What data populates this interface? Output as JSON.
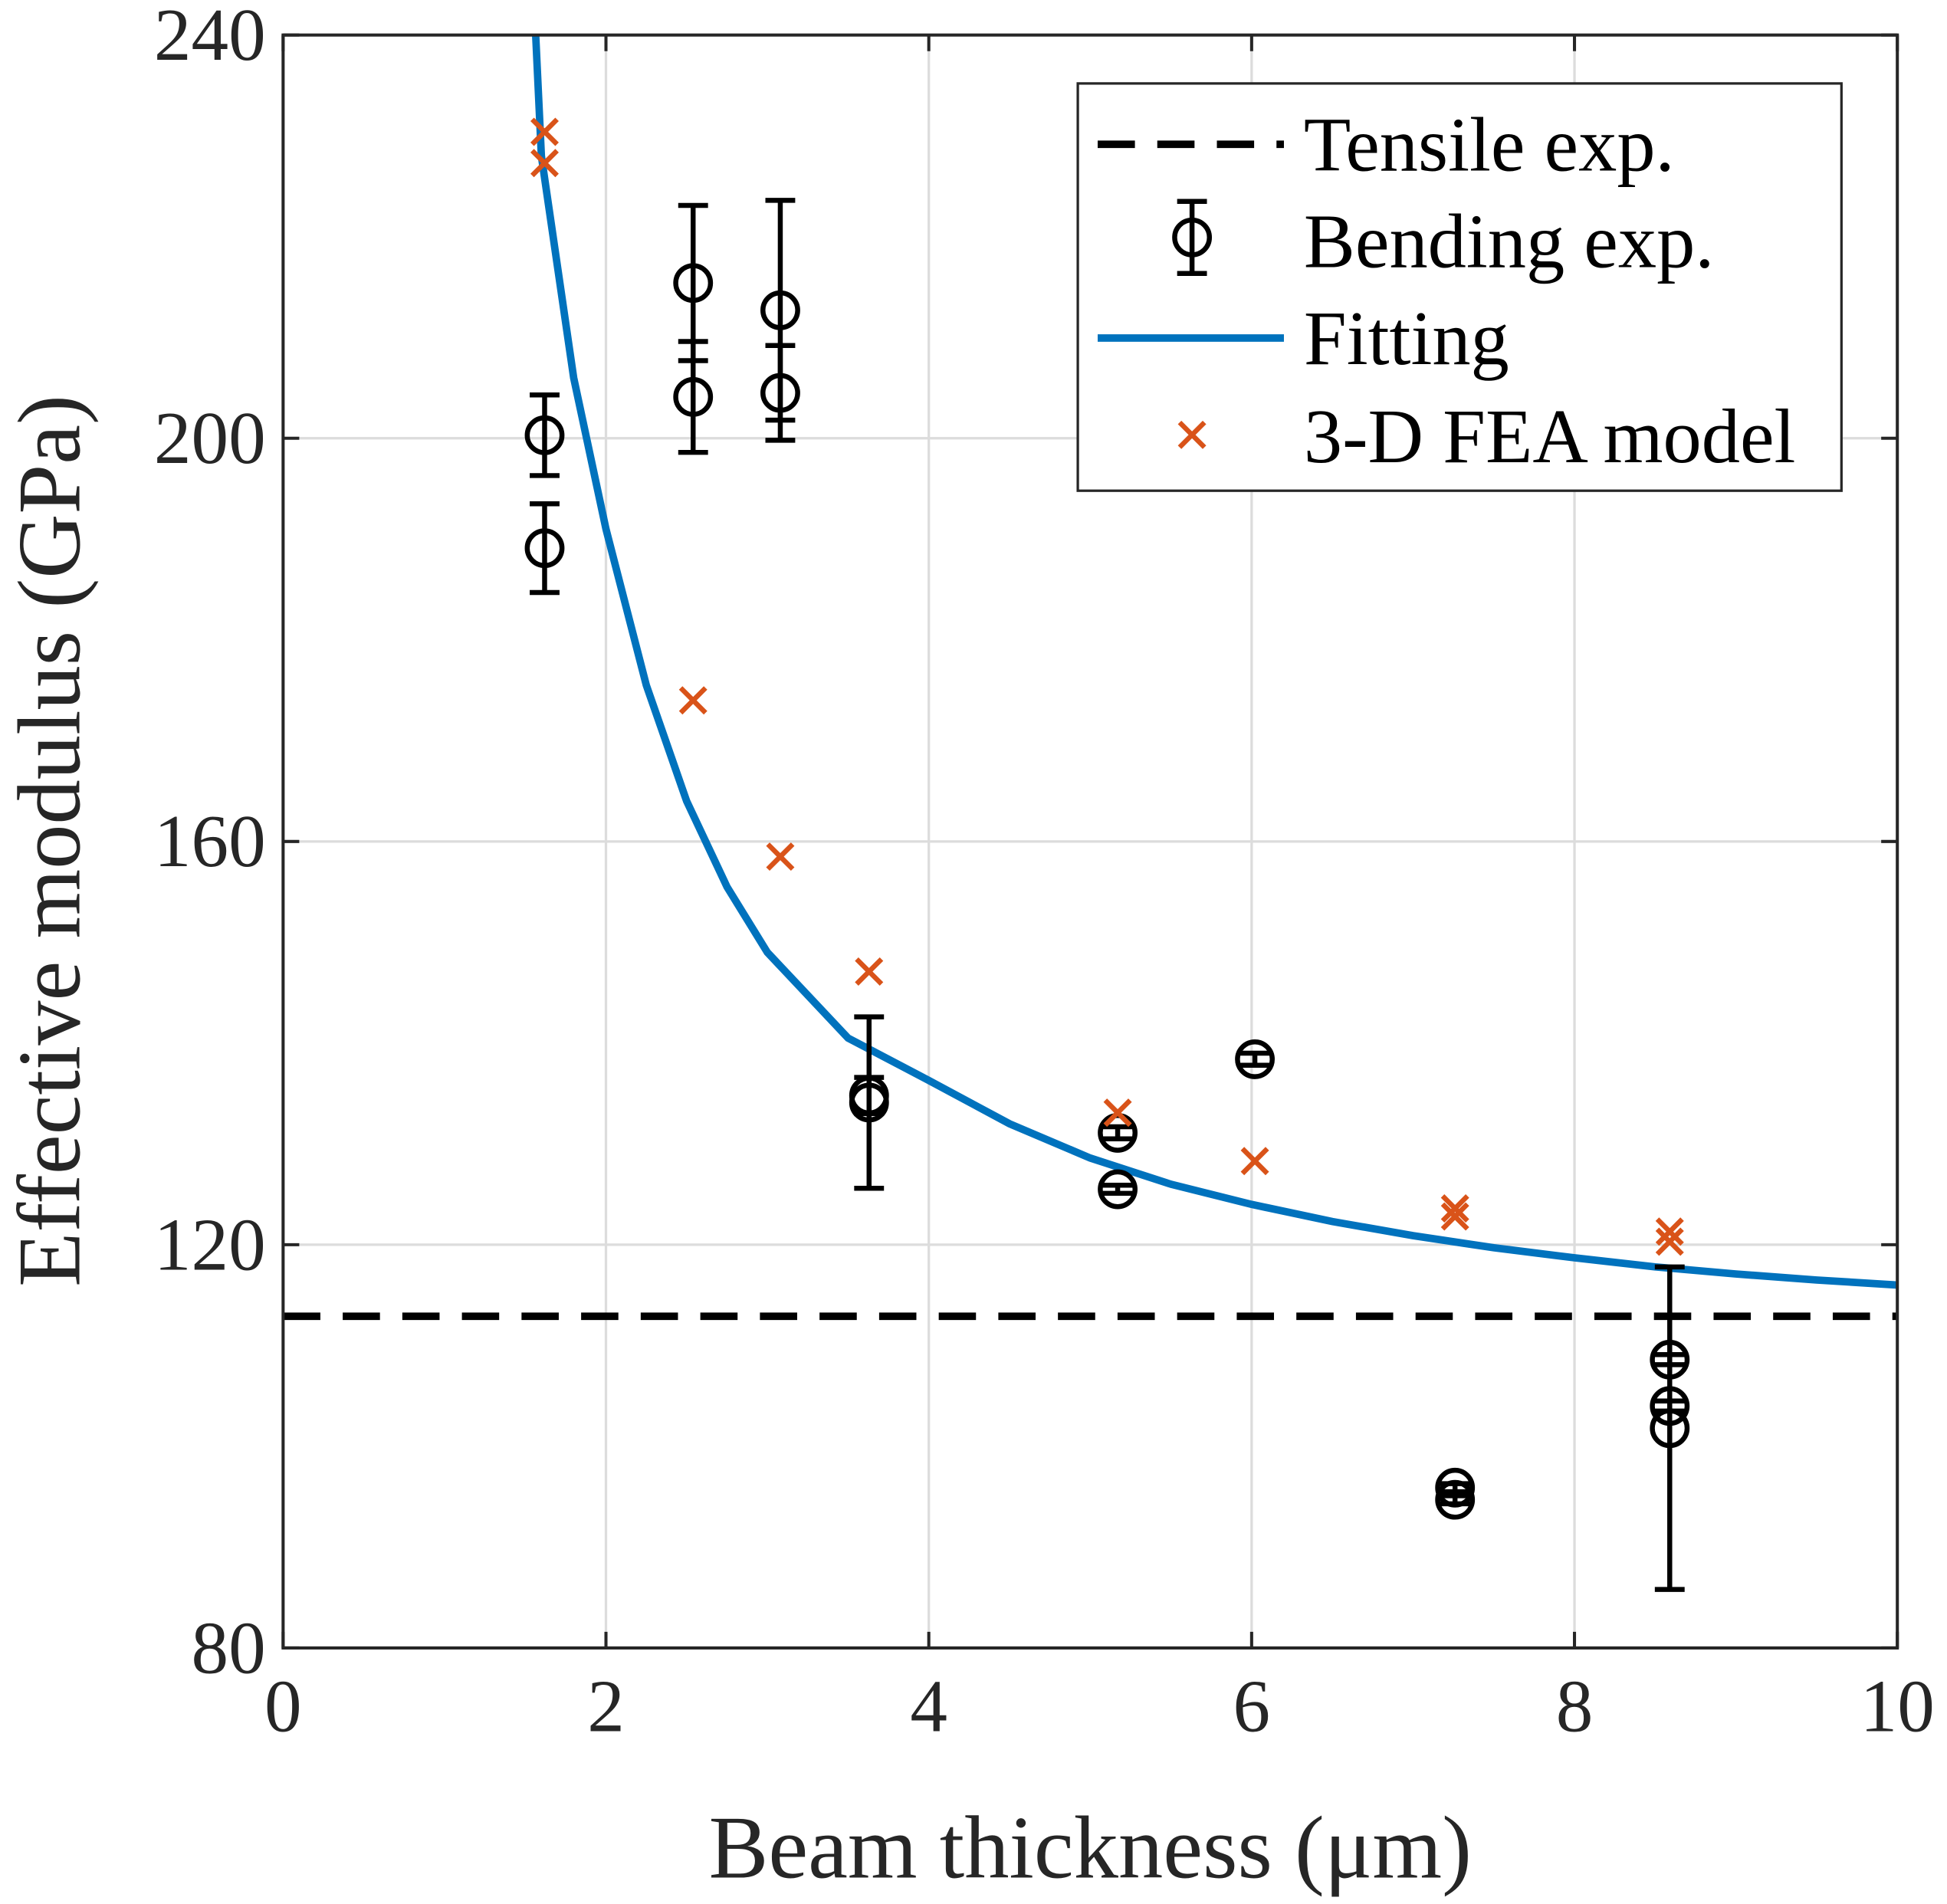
{
  "chart_data": {
    "type": "scatter",
    "xlabel": "Beam thickness (μm)",
    "ylabel": "Effective modulus (GPa)",
    "xlim": [
      0,
      10
    ],
    "ylim": [
      80,
      240
    ],
    "xticks": [
      "0",
      "2",
      "4",
      "6",
      "8",
      "10"
    ],
    "yticks": [
      "80",
      "120",
      "160",
      "200",
      "240"
    ],
    "grid": true,
    "legend_position": "top-right",
    "colors": {
      "tensile": "#000000",
      "bending": "#000000",
      "fitting": "#0072BD",
      "fea": "#D95319"
    },
    "legend": [
      "Tensile exp.",
      "Bending exp.",
      "Fitting",
      "3-D FEA model"
    ],
    "series": [
      {
        "name": "Tensile exp.",
        "style": "dashed-line",
        "y": 112.9
      },
      {
        "name": "Bending exp.",
        "style": "circle-errorbar",
        "points": [
          {
            "x": 1.62,
            "y": 200.3,
            "err": 4.0
          },
          {
            "x": 1.62,
            "y": 189.1,
            "err": 4.4
          },
          {
            "x": 2.54,
            "y": 215.4,
            "err": 7.7
          },
          {
            "x": 2.54,
            "y": 204.1,
            "err": 5.5
          },
          {
            "x": 3.08,
            "y": 212.7,
            "err": 10.9
          },
          {
            "x": 3.08,
            "y": 204.5,
            "err": 4.7
          },
          {
            "x": 3.63,
            "y": 134.1,
            "err": 8.5
          },
          {
            "x": 3.63,
            "y": 134.8,
            "err": 1.8
          },
          {
            "x": 5.17,
            "y": 131.1,
            "err": 0.6
          },
          {
            "x": 5.17,
            "y": 125.5,
            "err": 0.4
          },
          {
            "x": 6.02,
            "y": 138.4,
            "err": 0.6
          },
          {
            "x": 7.26,
            "y": 95.9,
            "err": 0.4
          },
          {
            "x": 7.26,
            "y": 94.7,
            "err": 0.4
          },
          {
            "x": 8.59,
            "y": 108.6,
            "err": 0.5
          },
          {
            "x": 8.59,
            "y": 104.0,
            "err": 0.5
          },
          {
            "x": 8.59,
            "y": 101.8,
            "err": 16.0
          }
        ]
      },
      {
        "name": "Fitting",
        "style": "solid-line",
        "points": [
          [
            1.6,
            228.0
          ],
          [
            1.8,
            206.0
          ],
          [
            2.0,
            191.0
          ],
          [
            2.25,
            175.5
          ],
          [
            2.5,
            164.0
          ],
          [
            2.75,
            155.5
          ],
          [
            3.0,
            149.0
          ],
          [
            3.5,
            140.5
          ],
          [
            4.0,
            136.3
          ],
          [
            4.5,
            132.0
          ],
          [
            5.0,
            128.6
          ],
          [
            5.5,
            126.0
          ],
          [
            6.0,
            124.0
          ],
          [
            6.5,
            122.3
          ],
          [
            7.0,
            120.9
          ],
          [
            7.5,
            119.7
          ],
          [
            8.0,
            118.7
          ],
          [
            8.5,
            117.8
          ],
          [
            9.0,
            117.1
          ],
          [
            9.5,
            116.5
          ],
          [
            10.0,
            116.0
          ]
        ]
      },
      {
        "name": "3-D FEA model",
        "style": "x-marker",
        "points": [
          [
            1.62,
            230.4
          ],
          [
            1.62,
            227.3
          ],
          [
            2.54,
            174.0
          ],
          [
            3.08,
            158.5
          ],
          [
            3.63,
            147.1
          ],
          [
            5.17,
            133.1
          ],
          [
            6.02,
            128.3
          ],
          [
            7.26,
            123.6
          ],
          [
            7.26,
            122.8
          ],
          [
            8.59,
            121.3
          ],
          [
            8.59,
            120.3
          ]
        ]
      }
    ]
  }
}
